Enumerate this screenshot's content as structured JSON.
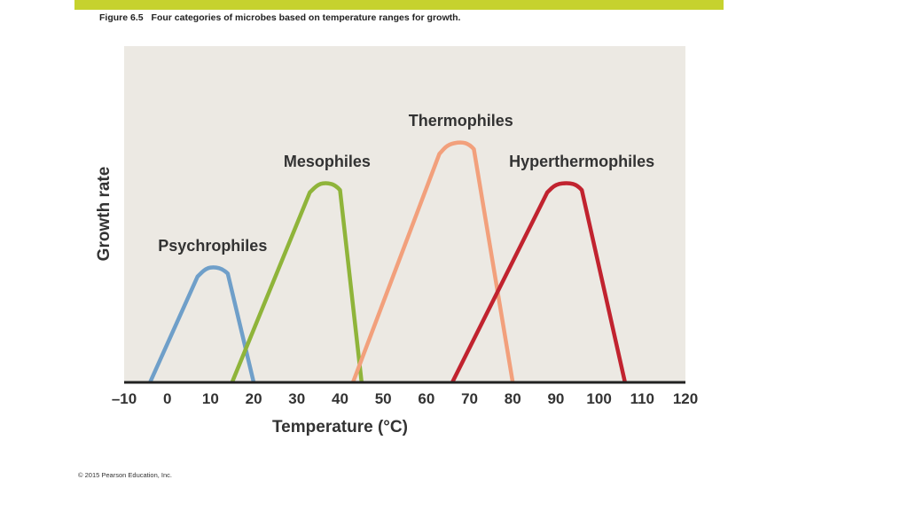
{
  "figure": {
    "number": "Figure 6.5",
    "caption": "Four categories of microbes based on temperature ranges for growth.",
    "copyright": "© 2015 Pearson Education, Inc.",
    "accent_color": "#c6d22e"
  },
  "chart_data": {
    "type": "line",
    "xlabel": "Temperature (°C)",
    "ylabel": "Growth rate",
    "xlim": [
      -10,
      120
    ],
    "ylim": [
      0,
      1
    ],
    "xticks": [
      "–10",
      "0",
      "10",
      "20",
      "30",
      "40",
      "50",
      "60",
      "70",
      "80",
      "90",
      "100",
      "110",
      "120"
    ],
    "plot_background": "#ece9e3",
    "series": [
      {
        "name": "Psychrophiles",
        "color": "#6f9fc9",
        "x": [
          -4,
          7,
          9,
          11,
          13,
          15,
          20
        ],
        "y": [
          0,
          0.44,
          0.475,
          0.48,
          0.47,
          0.435,
          0
        ]
      },
      {
        "name": "Mesophiles",
        "color": "#8fb43a",
        "x": [
          15,
          33,
          35,
          37,
          39,
          41,
          45
        ],
        "y": [
          0,
          0.79,
          0.825,
          0.83,
          0.82,
          0.78,
          0
        ]
      },
      {
        "name": "Thermophiles",
        "color": "#f2a07c",
        "x": [
          43,
          63,
          65,
          68,
          70,
          72,
          80
        ],
        "y": [
          0,
          0.95,
          0.99,
          1.0,
          0.99,
          0.95,
          0
        ]
      },
      {
        "name": "Hyperthermophiles",
        "color": "#c1232f",
        "x": [
          66,
          88,
          90,
          93,
          95,
          97,
          106
        ],
        "y": [
          0,
          0.79,
          0.825,
          0.83,
          0.82,
          0.78,
          0
        ]
      }
    ]
  }
}
